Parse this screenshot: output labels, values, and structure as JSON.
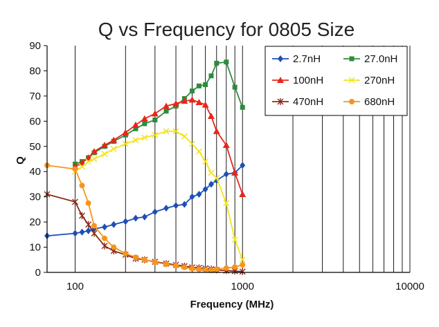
{
  "chart_data": {
    "type": "line",
    "title": "Q vs Frequency for 0805 Size",
    "xlabel": "Frequency (MHz)",
    "ylabel": "Q",
    "x_scale": "log",
    "xlim": [
      68,
      10000
    ],
    "ylim": [
      0,
      90
    ],
    "x_ticks": [
      100,
      1000,
      10000
    ],
    "x_tick_labels": [
      "100",
      "1000",
      "10000"
    ],
    "y_ticks": [
      0,
      10,
      20,
      30,
      40,
      50,
      60,
      70,
      80,
      90
    ],
    "y_tick_labels": [
      "0",
      "10",
      "20",
      "30",
      "40",
      "50",
      "60",
      "70",
      "80",
      "90"
    ],
    "grid": "vertical-log-minor",
    "legend_position": "top-right",
    "series": [
      {
        "name": "2.7nH",
        "color": "#1f4fb5",
        "marker": "diamond",
        "points": [
          [
            68,
            14.5
          ],
          [
            100,
            15.5
          ],
          [
            110,
            16
          ],
          [
            120,
            16.5
          ],
          [
            130,
            17.3
          ],
          [
            150,
            18
          ],
          [
            170,
            19
          ],
          [
            200,
            20.2
          ],
          [
            230,
            21.5
          ],
          [
            260,
            22
          ],
          [
            300,
            24
          ],
          [
            350,
            25.5
          ],
          [
            400,
            26.5
          ],
          [
            450,
            27
          ],
          [
            500,
            30
          ],
          [
            550,
            31
          ],
          [
            600,
            33
          ],
          [
            650,
            35
          ],
          [
            700,
            36.5
          ],
          [
            800,
            39
          ],
          [
            900,
            39.5
          ],
          [
            1000,
            42.5
          ]
        ]
      },
      {
        "name": "27.0nH",
        "color": "#2e8b3d",
        "marker": "square",
        "points": [
          [
            100,
            43
          ],
          [
            110,
            44
          ],
          [
            120,
            45.5
          ],
          [
            130,
            47.5
          ],
          [
            150,
            50
          ],
          [
            170,
            52
          ],
          [
            200,
            54.5
          ],
          [
            230,
            57
          ],
          [
            260,
            59
          ],
          [
            300,
            60.5
          ],
          [
            350,
            64
          ],
          [
            400,
            66
          ],
          [
            450,
            69
          ],
          [
            500,
            72
          ],
          [
            550,
            74
          ],
          [
            600,
            74.5
          ],
          [
            650,
            78
          ],
          [
            700,
            83
          ],
          [
            800,
            83.5
          ],
          [
            900,
            73.5
          ],
          [
            1000,
            65.5
          ]
        ]
      },
      {
        "name": "100nH",
        "color": "#e8251b",
        "marker": "triangle",
        "points": [
          [
            100,
            42
          ],
          [
            110,
            43.5
          ],
          [
            120,
            45.5
          ],
          [
            130,
            48
          ],
          [
            150,
            50.5
          ],
          [
            170,
            52.5
          ],
          [
            200,
            55.5
          ],
          [
            230,
            58.5
          ],
          [
            260,
            61
          ],
          [
            300,
            63
          ],
          [
            350,
            66
          ],
          [
            400,
            67
          ],
          [
            450,
            68
          ],
          [
            500,
            68.5
          ],
          [
            550,
            67.5
          ],
          [
            600,
            66.5
          ],
          [
            650,
            62
          ],
          [
            700,
            56
          ],
          [
            800,
            50.5
          ],
          [
            900,
            39.5
          ],
          [
            1000,
            31
          ]
        ]
      },
      {
        "name": "270nH",
        "color": "#f2e41c",
        "marker": "x",
        "points": [
          [
            100,
            40
          ],
          [
            110,
            42
          ],
          [
            120,
            44
          ],
          [
            130,
            45
          ],
          [
            150,
            47
          ],
          [
            170,
            49
          ],
          [
            200,
            51
          ],
          [
            230,
            52.5
          ],
          [
            260,
            53.5
          ],
          [
            300,
            54.5
          ],
          [
            350,
            56
          ],
          [
            400,
            56
          ],
          [
            450,
            54
          ],
          [
            500,
            51
          ],
          [
            550,
            48
          ],
          [
            600,
            44
          ],
          [
            650,
            39.5
          ],
          [
            700,
            37.5
          ],
          [
            800,
            27.5
          ],
          [
            900,
            13
          ],
          [
            1000,
            5
          ]
        ]
      },
      {
        "name": "470nH",
        "color": "#8b2a1a",
        "marker": "star",
        "points": [
          [
            68,
            31
          ],
          [
            100,
            28
          ],
          [
            110,
            22.5
          ],
          [
            120,
            19
          ],
          [
            130,
            15.5
          ],
          [
            150,
            10.5
          ],
          [
            170,
            8.5
          ],
          [
            200,
            7
          ],
          [
            230,
            5.5
          ],
          [
            260,
            5
          ],
          [
            300,
            4.2
          ],
          [
            350,
            3.5
          ],
          [
            400,
            3
          ],
          [
            450,
            2.5
          ],
          [
            500,
            2
          ],
          [
            550,
            1.8
          ],
          [
            600,
            1.6
          ],
          [
            650,
            1.3
          ],
          [
            700,
            1
          ],
          [
            800,
            0.7
          ],
          [
            900,
            0.5
          ],
          [
            1000,
            0.3
          ]
        ]
      },
      {
        "name": "680nH",
        "color": "#f7941d",
        "marker": "circle",
        "points": [
          [
            68,
            42.5
          ],
          [
            100,
            41
          ],
          [
            110,
            34.5
          ],
          [
            120,
            27.5
          ],
          [
            130,
            18.5
          ],
          [
            150,
            13.5
          ],
          [
            170,
            10
          ],
          [
            200,
            7.5
          ],
          [
            230,
            6
          ],
          [
            260,
            5
          ],
          [
            300,
            4
          ],
          [
            350,
            3.2
          ],
          [
            400,
            2.6
          ],
          [
            450,
            2
          ],
          [
            500,
            1.5
          ],
          [
            550,
            1.2
          ],
          [
            600,
            1
          ],
          [
            650,
            0.8
          ],
          [
            700,
            1.3
          ],
          [
            800,
            1.7
          ],
          [
            900,
            2.1
          ],
          [
            1000,
            3
          ]
        ]
      }
    ]
  }
}
